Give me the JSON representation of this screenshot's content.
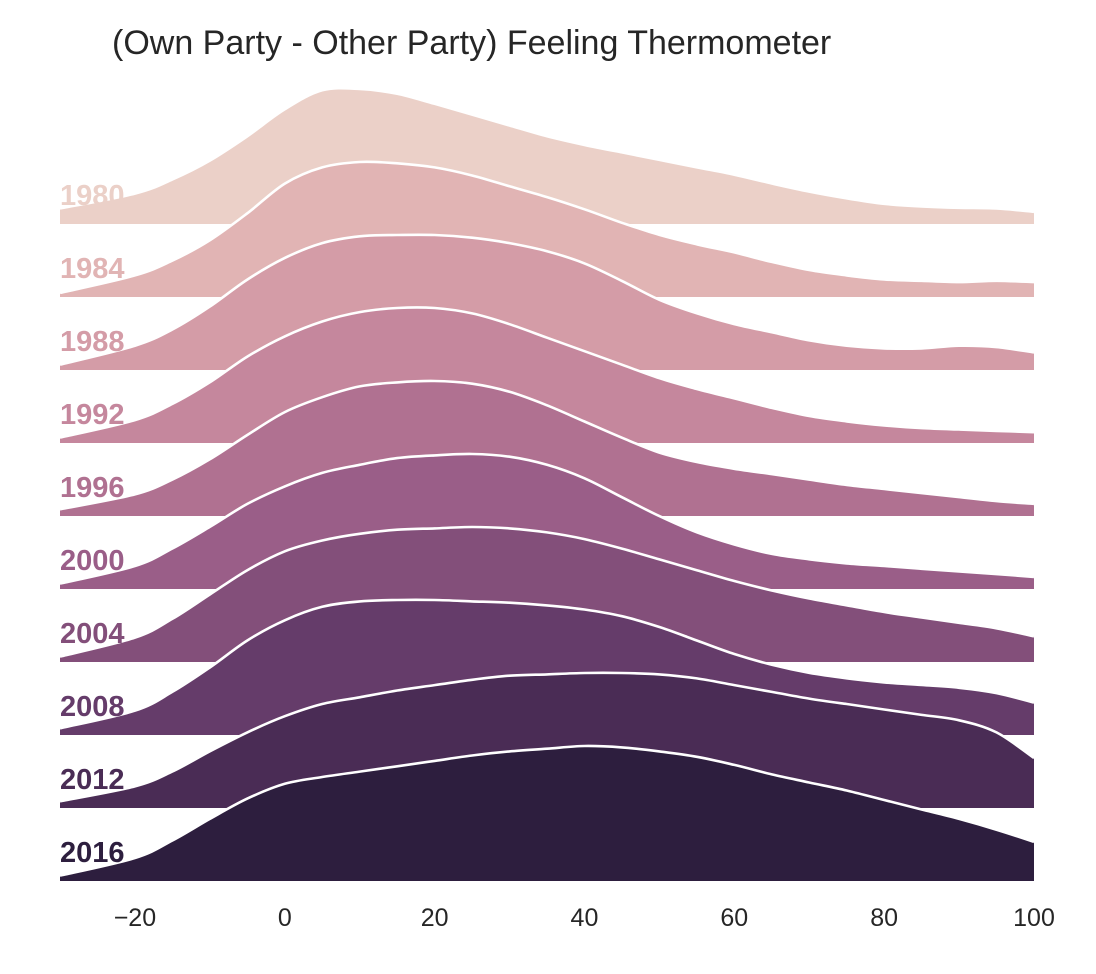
{
  "chart_data": {
    "type": "area",
    "title": "(Own Party - Other Party) Feeling Thermometer",
    "xlabel": "",
    "ylabel": "",
    "xlim": [
      -30,
      100
    ],
    "xticks": [
      -20,
      0,
      20,
      40,
      60,
      80,
      100
    ],
    "xtick_labels": [
      "−20",
      "0",
      "20",
      "40",
      "60",
      "80",
      "100"
    ],
    "grid": false,
    "legend": "none",
    "x": [
      -30,
      -20,
      -15,
      -10,
      -5,
      0,
      5,
      10,
      15,
      20,
      25,
      30,
      35,
      40,
      45,
      50,
      55,
      60,
      65,
      70,
      75,
      80,
      85,
      90,
      95,
      100
    ],
    "series": [
      {
        "name": "1980",
        "color": "#ebd0c8",
        "values": [
          0.115,
          0.225,
          0.33,
          0.47,
          0.65,
          0.85,
          0.99,
          1.0,
          0.965,
          0.89,
          0.81,
          0.73,
          0.65,
          0.585,
          0.53,
          0.475,
          0.42,
          0.365,
          0.3,
          0.24,
          0.19,
          0.15,
          0.13,
          0.12,
          0.115,
          0.09
        ]
      },
      {
        "name": "1984",
        "color": "#e1b4b4",
        "values": [
          0.03,
          0.16,
          0.27,
          0.42,
          0.62,
          0.84,
          0.96,
          1.0,
          0.99,
          0.96,
          0.9,
          0.82,
          0.74,
          0.65,
          0.55,
          0.46,
          0.39,
          0.33,
          0.26,
          0.2,
          0.16,
          0.13,
          0.12,
          0.11,
          0.12,
          0.11
        ]
      },
      {
        "name": "1988",
        "color": "#d49ca7",
        "values": [
          0.04,
          0.18,
          0.3,
          0.47,
          0.67,
          0.83,
          0.94,
          0.99,
          1.0,
          1.0,
          0.98,
          0.94,
          0.88,
          0.79,
          0.66,
          0.52,
          0.42,
          0.34,
          0.28,
          0.22,
          0.18,
          0.16,
          0.16,
          0.18,
          0.17,
          0.13
        ]
      },
      {
        "name": "1992",
        "color": "#c5879d",
        "values": [
          0.04,
          0.17,
          0.29,
          0.45,
          0.64,
          0.79,
          0.9,
          0.97,
          1.0,
          1.0,
          0.96,
          0.88,
          0.78,
          0.68,
          0.58,
          0.48,
          0.4,
          0.33,
          0.26,
          0.2,
          0.16,
          0.13,
          0.11,
          0.1,
          0.09,
          0.08
        ]
      },
      {
        "name": "1996",
        "color": "#b07191",
        "values": [
          0.05,
          0.16,
          0.27,
          0.42,
          0.6,
          0.77,
          0.88,
          0.96,
          0.99,
          1.0,
          0.98,
          0.92,
          0.82,
          0.7,
          0.58,
          0.47,
          0.4,
          0.35,
          0.31,
          0.27,
          0.23,
          0.2,
          0.17,
          0.14,
          0.11,
          0.09
        ]
      },
      {
        "name": "2000",
        "color": "#9a5e88",
        "values": [
          0.04,
          0.17,
          0.3,
          0.46,
          0.63,
          0.76,
          0.86,
          0.92,
          0.97,
          0.99,
          1.0,
          0.98,
          0.92,
          0.82,
          0.68,
          0.54,
          0.42,
          0.33,
          0.26,
          0.22,
          0.19,
          0.17,
          0.15,
          0.13,
          0.11,
          0.09
        ]
      },
      {
        "name": "2004",
        "color": "#834f7a",
        "values": [
          0.04,
          0.18,
          0.32,
          0.5,
          0.68,
          0.82,
          0.9,
          0.95,
          0.98,
          0.99,
          1.0,
          0.99,
          0.96,
          0.91,
          0.84,
          0.76,
          0.68,
          0.6,
          0.53,
          0.47,
          0.42,
          0.37,
          0.33,
          0.29,
          0.25,
          0.19
        ]
      },
      {
        "name": "2008",
        "color": "#653c6a",
        "values": [
          0.05,
          0.18,
          0.32,
          0.5,
          0.7,
          0.85,
          0.95,
          0.99,
          1.0,
          1.0,
          0.99,
          0.98,
          0.96,
          0.93,
          0.88,
          0.8,
          0.7,
          0.6,
          0.52,
          0.46,
          0.42,
          0.39,
          0.37,
          0.35,
          0.31,
          0.24
        ]
      },
      {
        "name": "2012",
        "color": "#4a2c55",
        "values": [
          0.05,
          0.16,
          0.27,
          0.42,
          0.56,
          0.68,
          0.77,
          0.82,
          0.87,
          0.91,
          0.95,
          0.98,
          0.99,
          1.0,
          1.0,
          0.99,
          0.96,
          0.91,
          0.86,
          0.81,
          0.77,
          0.73,
          0.69,
          0.65,
          0.56,
          0.37
        ]
      },
      {
        "name": "2016",
        "color": "#2d1e3e",
        "values": [
          0.04,
          0.17,
          0.3,
          0.46,
          0.61,
          0.72,
          0.77,
          0.81,
          0.85,
          0.89,
          0.93,
          0.96,
          0.98,
          1.0,
          0.99,
          0.96,
          0.92,
          0.86,
          0.79,
          0.73,
          0.67,
          0.6,
          0.53,
          0.46,
          0.38,
          0.29
        ]
      }
    ]
  }
}
